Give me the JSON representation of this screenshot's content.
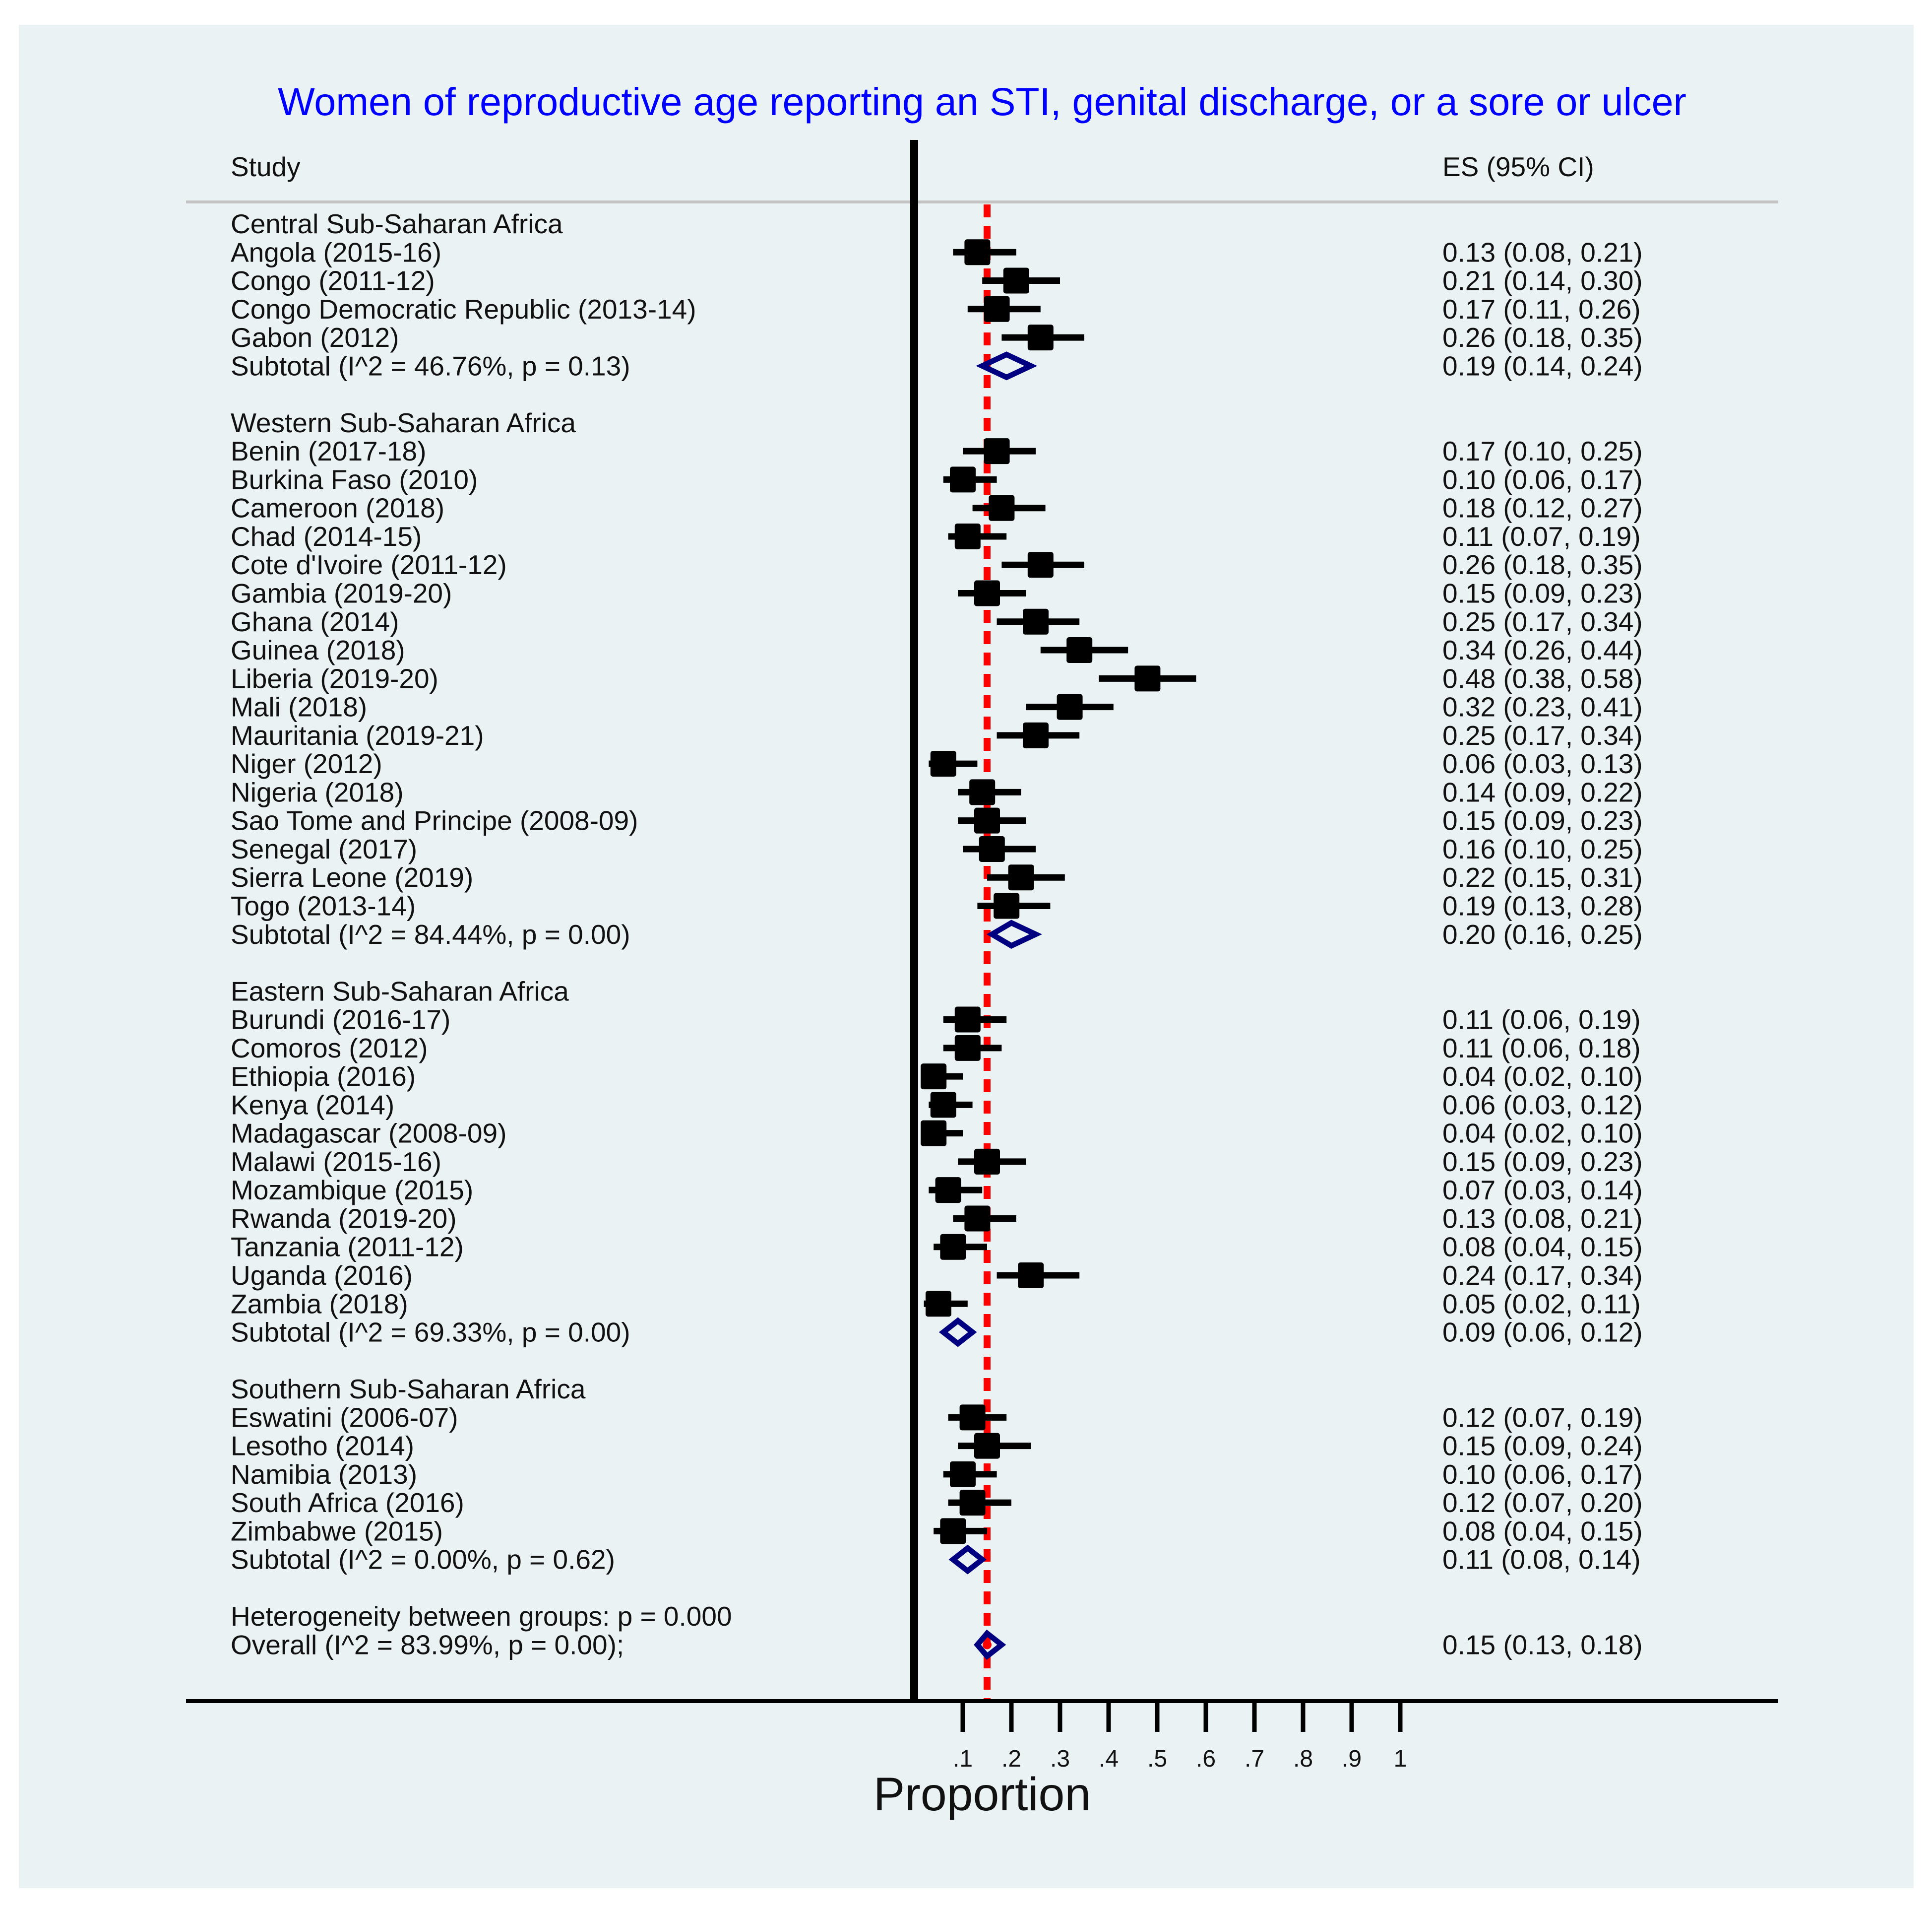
{
  "chart_data": {
    "type": "forest",
    "title": "Women of reproductive age reporting an STI, genital discharge, or a sore or ulcer",
    "col_study": "Study",
    "col_es": "ES (95% CI)",
    "xlabel": "Proportion",
    "xlim": [
      0,
      1
    ],
    "x_ticks": [
      0.1,
      0.2,
      0.3,
      0.4,
      0.5,
      0.6,
      0.7,
      0.8,
      0.9,
      1.0
    ],
    "x_tick_labels": [
      ".1",
      ".2",
      ".3",
      ".4",
      ".5",
      ".6",
      ".7",
      ".8",
      ".9",
      "1"
    ],
    "null_line": 0,
    "overall_line": 0.15,
    "rows": [
      {
        "kind": "header",
        "label": "Central Sub-Saharan Africa"
      },
      {
        "kind": "study",
        "label": "Angola (2015-16)",
        "es": 0.13,
        "lo": 0.08,
        "hi": 0.21,
        "es_text": "0.13 (0.08, 0.21)"
      },
      {
        "kind": "study",
        "label": "Congo (2011-12)",
        "es": 0.21,
        "lo": 0.14,
        "hi": 0.3,
        "es_text": "0.21 (0.14, 0.30)"
      },
      {
        "kind": "study",
        "label": "Congo Democratic Republic (2013-14)",
        "es": 0.17,
        "lo": 0.11,
        "hi": 0.26,
        "es_text": "0.17 (0.11, 0.26)"
      },
      {
        "kind": "study",
        "label": "Gabon (2012)",
        "es": 0.26,
        "lo": 0.18,
        "hi": 0.35,
        "es_text": "0.26 (0.18, 0.35)"
      },
      {
        "kind": "subtotal",
        "label": "Subtotal  (I^2 = 46.76%, p = 0.13)",
        "es": 0.19,
        "lo": 0.14,
        "hi": 0.24,
        "es_text": "0.19 (0.14, 0.24)"
      },
      {
        "kind": "blank"
      },
      {
        "kind": "header",
        "label": "Western Sub-Saharan Africa"
      },
      {
        "kind": "study",
        "label": "Benin (2017-18)",
        "es": 0.17,
        "lo": 0.1,
        "hi": 0.25,
        "es_text": "0.17 (0.10, 0.25)"
      },
      {
        "kind": "study",
        "label": "Burkina Faso (2010)",
        "es": 0.1,
        "lo": 0.06,
        "hi": 0.17,
        "es_text": "0.10 (0.06, 0.17)"
      },
      {
        "kind": "study",
        "label": "Cameroon (2018)",
        "es": 0.18,
        "lo": 0.12,
        "hi": 0.27,
        "es_text": "0.18 (0.12, 0.27)"
      },
      {
        "kind": "study",
        "label": "Chad (2014-15)",
        "es": 0.11,
        "lo": 0.07,
        "hi": 0.19,
        "es_text": "0.11 (0.07, 0.19)"
      },
      {
        "kind": "study",
        "label": "Cote d'Ivoire (2011-12)",
        "es": 0.26,
        "lo": 0.18,
        "hi": 0.35,
        "es_text": "0.26 (0.18, 0.35)"
      },
      {
        "kind": "study",
        "label": "Gambia (2019-20)",
        "es": 0.15,
        "lo": 0.09,
        "hi": 0.23,
        "es_text": "0.15 (0.09, 0.23)"
      },
      {
        "kind": "study",
        "label": "Ghana (2014)",
        "es": 0.25,
        "lo": 0.17,
        "hi": 0.34,
        "es_text": "0.25 (0.17, 0.34)"
      },
      {
        "kind": "study",
        "label": "Guinea (2018)",
        "es": 0.34,
        "lo": 0.26,
        "hi": 0.44,
        "es_text": "0.34 (0.26, 0.44)"
      },
      {
        "kind": "study",
        "label": "Liberia (2019-20)",
        "es": 0.48,
        "lo": 0.38,
        "hi": 0.58,
        "es_text": "0.48 (0.38, 0.58)"
      },
      {
        "kind": "study",
        "label": "Mali (2018)",
        "es": 0.32,
        "lo": 0.23,
        "hi": 0.41,
        "es_text": "0.32 (0.23, 0.41)"
      },
      {
        "kind": "study",
        "label": "Mauritania (2019-21)",
        "es": 0.25,
        "lo": 0.17,
        "hi": 0.34,
        "es_text": "0.25 (0.17, 0.34)"
      },
      {
        "kind": "study",
        "label": "Niger (2012)",
        "es": 0.06,
        "lo": 0.03,
        "hi": 0.13,
        "es_text": "0.06 (0.03, 0.13)"
      },
      {
        "kind": "study",
        "label": "Nigeria (2018)",
        "es": 0.14,
        "lo": 0.09,
        "hi": 0.22,
        "es_text": "0.14 (0.09, 0.22)"
      },
      {
        "kind": "study",
        "label": "Sao Tome and Principe (2008-09)",
        "es": 0.15,
        "lo": 0.09,
        "hi": 0.23,
        "es_text": "0.15 (0.09, 0.23)"
      },
      {
        "kind": "study",
        "label": "Senegal (2017)",
        "es": 0.16,
        "lo": 0.1,
        "hi": 0.25,
        "es_text": "0.16 (0.10, 0.25)"
      },
      {
        "kind": "study",
        "label": "Sierra Leone (2019)",
        "es": 0.22,
        "lo": 0.15,
        "hi": 0.31,
        "es_text": "0.22 (0.15, 0.31)"
      },
      {
        "kind": "study",
        "label": "Togo (2013-14)",
        "es": 0.19,
        "lo": 0.13,
        "hi": 0.28,
        "es_text": "0.19 (0.13, 0.28)"
      },
      {
        "kind": "subtotal",
        "label": "Subtotal  (I^2 = 84.44%, p = 0.00)",
        "es": 0.2,
        "lo": 0.16,
        "hi": 0.25,
        "es_text": "0.20 (0.16, 0.25)"
      },
      {
        "kind": "blank"
      },
      {
        "kind": "header",
        "label": "Eastern Sub-Saharan Africa"
      },
      {
        "kind": "study",
        "label": "Burundi (2016-17)",
        "es": 0.11,
        "lo": 0.06,
        "hi": 0.19,
        "es_text": "0.11 (0.06, 0.19)"
      },
      {
        "kind": "study",
        "label": "Comoros (2012)",
        "es": 0.11,
        "lo": 0.06,
        "hi": 0.18,
        "es_text": "0.11 (0.06, 0.18)"
      },
      {
        "kind": "study",
        "label": "Ethiopia (2016)",
        "es": 0.04,
        "lo": 0.02,
        "hi": 0.1,
        "es_text": "0.04 (0.02, 0.10)"
      },
      {
        "kind": "study",
        "label": "Kenya (2014)",
        "es": 0.06,
        "lo": 0.03,
        "hi": 0.12,
        "es_text": "0.06 (0.03, 0.12)"
      },
      {
        "kind": "study",
        "label": "Madagascar (2008-09)",
        "es": 0.04,
        "lo": 0.02,
        "hi": 0.1,
        "es_text": "0.04 (0.02, 0.10)"
      },
      {
        "kind": "study",
        "label": "Malawi (2015-16)",
        "es": 0.15,
        "lo": 0.09,
        "hi": 0.23,
        "es_text": "0.15 (0.09, 0.23)"
      },
      {
        "kind": "study",
        "label": "Mozambique (2015)",
        "es": 0.07,
        "lo": 0.03,
        "hi": 0.14,
        "es_text": "0.07 (0.03, 0.14)"
      },
      {
        "kind": "study",
        "label": "Rwanda (2019-20)",
        "es": 0.13,
        "lo": 0.08,
        "hi": 0.21,
        "es_text": "0.13 (0.08, 0.21)"
      },
      {
        "kind": "study",
        "label": "Tanzania (2011-12)",
        "es": 0.08,
        "lo": 0.04,
        "hi": 0.15,
        "es_text": "0.08 (0.04, 0.15)"
      },
      {
        "kind": "study",
        "label": "Uganda (2016)",
        "es": 0.24,
        "lo": 0.17,
        "hi": 0.34,
        "es_text": "0.24 (0.17, 0.34)"
      },
      {
        "kind": "study",
        "label": "Zambia (2018)",
        "es": 0.05,
        "lo": 0.02,
        "hi": 0.11,
        "es_text": "0.05 (0.02, 0.11)"
      },
      {
        "kind": "subtotal",
        "label": "Subtotal  (I^2 = 69.33%, p = 0.00)",
        "es": 0.09,
        "lo": 0.06,
        "hi": 0.12,
        "es_text": "0.09 (0.06, 0.12)"
      },
      {
        "kind": "blank"
      },
      {
        "kind": "header",
        "label": "Southern Sub-Saharan Africa"
      },
      {
        "kind": "study",
        "label": "Eswatini (2006-07)",
        "es": 0.12,
        "lo": 0.07,
        "hi": 0.19,
        "es_text": "0.12 (0.07, 0.19)"
      },
      {
        "kind": "study",
        "label": "Lesotho (2014)",
        "es": 0.15,
        "lo": 0.09,
        "hi": 0.24,
        "es_text": "0.15 (0.09, 0.24)"
      },
      {
        "kind": "study",
        "label": "Namibia (2013)",
        "es": 0.1,
        "lo": 0.06,
        "hi": 0.17,
        "es_text": "0.10 (0.06, 0.17)"
      },
      {
        "kind": "study",
        "label": "South Africa (2016)",
        "es": 0.12,
        "lo": 0.07,
        "hi": 0.2,
        "es_text": "0.12 (0.07, 0.20)"
      },
      {
        "kind": "study",
        "label": "Zimbabwe (2015)",
        "es": 0.08,
        "lo": 0.04,
        "hi": 0.15,
        "es_text": "0.08 (0.04, 0.15)"
      },
      {
        "kind": "subtotal",
        "label": "Subtotal  (I^2 = 0.00%, p = 0.62)",
        "es": 0.11,
        "lo": 0.08,
        "hi": 0.14,
        "es_text": "0.11 (0.08, 0.14)"
      },
      {
        "kind": "blank"
      },
      {
        "kind": "note",
        "label": "Heterogeneity between groups: p = 0.000"
      },
      {
        "kind": "overall",
        "label": "Overall  (I^2 = 83.99%, p = 0.00);",
        "es": 0.15,
        "lo": 0.13,
        "hi": 0.18,
        "es_text": "0.15 (0.13, 0.18)"
      }
    ],
    "colors": {
      "title": "#0000ff",
      "diamond": "#000080",
      "overall_line": "#ff0000",
      "marker": "#000000",
      "panel_bg": "#eaf2f3"
    }
  }
}
